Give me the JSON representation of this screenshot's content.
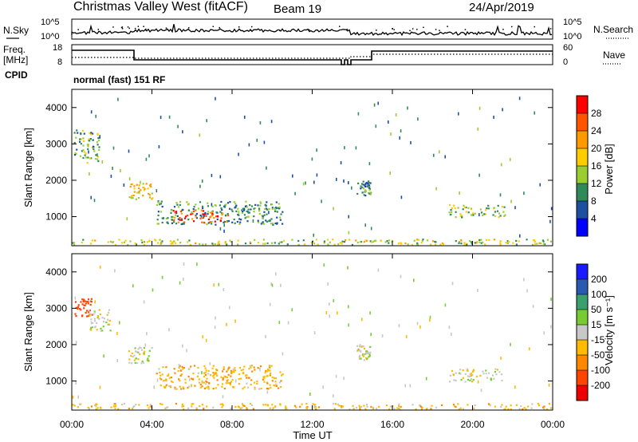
{
  "header": {
    "title": "Christmas Valley West (fitACF)",
    "beam": "Beam 19",
    "date": "24/Apr/2019"
  },
  "strip_panels": {
    "nsky": {
      "label": "N.Sky",
      "ticks": [
        "10^5",
        "10^0"
      ]
    },
    "nsearch": {
      "label": "N.Search",
      "ticks": [
        "10^5",
        "10^0"
      ]
    },
    "freq": {
      "label_line1": "Freq.",
      "label_line2": "[MHz]",
      "ticks": [
        "18",
        "8"
      ]
    },
    "nave": {
      "label": "Nave",
      "ticks": [
        "60",
        "0"
      ]
    },
    "cpid": {
      "label": "CPID",
      "value": "normal (fast) 151 RF"
    }
  },
  "colorbars": {
    "power": {
      "title": "Power [dB]",
      "labels": [
        "28",
        "24",
        "20",
        "16",
        "12",
        "8",
        "4"
      ],
      "colors": [
        "#ff0000",
        "#ff5500",
        "#ff9900",
        "#ffcc00",
        "#9acd32",
        "#2e8b57",
        "#1e4fa0",
        "#0000ff"
      ]
    },
    "velocity": {
      "title": "Velocity [m s⁻¹]",
      "labels": [
        "200",
        "100",
        "50",
        "15",
        "-15",
        "-50",
        "-100",
        "-200"
      ],
      "colors": [
        "#1a1aff",
        "#2a5ab0",
        "#3aa070",
        "#77cc33",
        "#c8c8c8",
        "#ffbb00",
        "#ff8800",
        "#ff4400",
        "#ee0000"
      ]
    }
  },
  "chart_data": [
    {
      "type": "heatmap",
      "title": "Power [dB]",
      "xlabel": "Time UT",
      "ylabel": "Slant Range [km]",
      "x_ticks": [
        "00:00",
        "04:00",
        "08:00",
        "12:00",
        "16:00",
        "20:00",
        "00:00"
      ],
      "y_ticks": [
        1000,
        2000,
        3000,
        4000
      ],
      "xlim": [
        0,
        24
      ],
      "ylim": [
        200,
        4500
      ],
      "colorbar_range": [
        0,
        32
      ],
      "regions": [
        {
          "t0": 0.1,
          "t1": 1.4,
          "r0": 2500,
          "r1": 3400,
          "value": 12
        },
        {
          "t0": 2.8,
          "t1": 4.0,
          "r0": 1500,
          "r1": 1950,
          "value": 18
        },
        {
          "t0": 4.2,
          "t1": 10.5,
          "r0": 800,
          "r1": 1450,
          "value": 10
        },
        {
          "t0": 5.0,
          "t1": 7.8,
          "r0": 850,
          "r1": 1200,
          "value": 26
        },
        {
          "t0": 14.2,
          "t1": 14.9,
          "r0": 1600,
          "r1": 2000,
          "value": 9
        },
        {
          "t0": 18.8,
          "t1": 21.6,
          "r0": 1000,
          "r1": 1350,
          "value": 14
        },
        {
          "t0": 0.0,
          "t1": 24.0,
          "r0": 200,
          "r1": 400,
          "value": 15
        }
      ]
    },
    {
      "type": "heatmap",
      "title": "Velocity [m s⁻¹]",
      "xlabel": "Time UT",
      "ylabel": "Slant Range [km]",
      "x_ticks": [
        "00:00",
        "04:00",
        "08:00",
        "12:00",
        "16:00",
        "20:00",
        "00:00"
      ],
      "y_ticks": [
        1000,
        2000,
        3000,
        4000
      ],
      "xlim": [
        0,
        24
      ],
      "ylim": [
        200,
        4500
      ],
      "colorbar_range": [
        -200,
        200
      ],
      "regions": [
        {
          "t0": 0.1,
          "t1": 1.0,
          "r0": 2800,
          "r1": 3300,
          "value": -150
        },
        {
          "t0": 0.8,
          "t1": 1.9,
          "r0": 2400,
          "r1": 3000,
          "value": 0
        },
        {
          "t0": 2.8,
          "t1": 4.0,
          "r0": 1500,
          "r1": 1950,
          "value": 0
        },
        {
          "t0": 4.2,
          "t1": 10.5,
          "r0": 800,
          "r1": 1450,
          "value": -40
        },
        {
          "t0": 14.2,
          "t1": 14.9,
          "r0": 1600,
          "r1": 2000,
          "value": 0
        },
        {
          "t0": 18.8,
          "t1": 21.6,
          "r0": 1000,
          "r1": 1350,
          "value": 0
        },
        {
          "t0": 0.0,
          "t1": 24.0,
          "r0": 200,
          "r1": 400,
          "value": -30
        }
      ]
    }
  ]
}
